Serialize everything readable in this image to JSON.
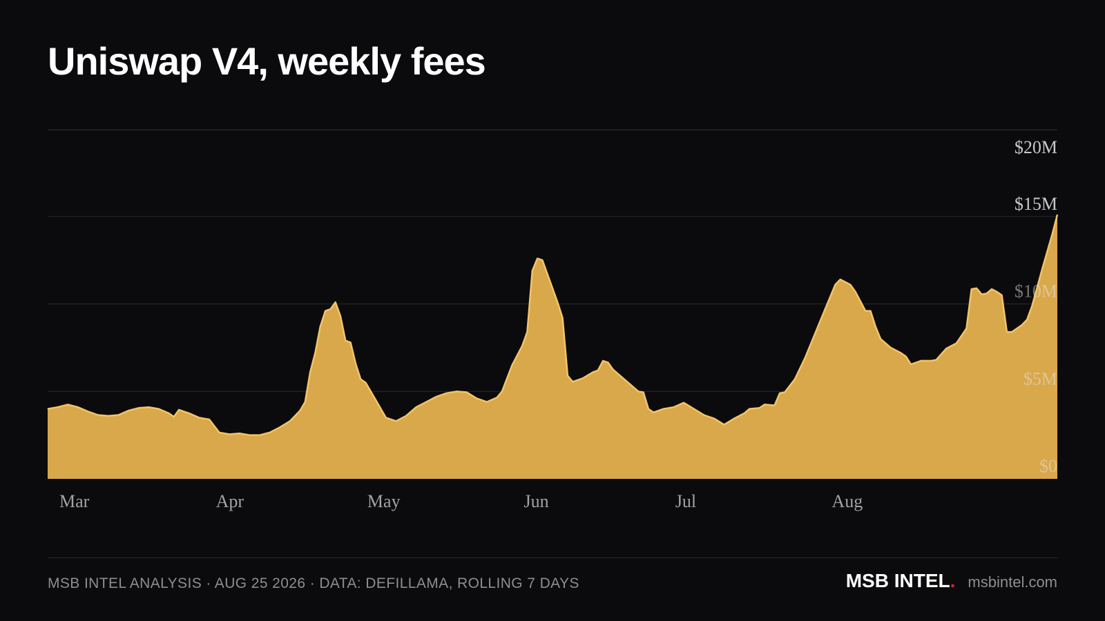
{
  "header": {
    "title": "Uniswap V4, weekly fees"
  },
  "footer": {
    "caption": "MSB INTEL ANALYSIS · AUG 25 2026 · DATA: DEFILLAMA, ROLLING 7 DAYS",
    "brand": "MSB INTEL",
    "brand_dot": ".",
    "site": "msbintel.com"
  },
  "colors": {
    "background": "#0b0b0d",
    "area_fill": "#d9a84a",
    "area_stroke": "#f2c46a",
    "gridline": "#2a2a2e",
    "brand_dot": "#d6263a"
  },
  "chart_data": {
    "type": "area",
    "title": "Uniswap V4, weekly fees",
    "xlabel": "",
    "ylabel": "",
    "x_unit": "day",
    "x_start": "2026-03-01",
    "x_end": "2026-08-25",
    "x_ticks": [
      {
        "label": "Mar",
        "date": "2026-03-01"
      },
      {
        "label": "Apr",
        "date": "2026-04-01"
      },
      {
        "label": "May",
        "date": "2026-05-01"
      },
      {
        "label": "Jun",
        "date": "2026-06-01"
      },
      {
        "label": "Jul",
        "date": "2026-07-01"
      },
      {
        "label": "Aug",
        "date": "2026-08-01"
      }
    ],
    "y_ticks": [
      {
        "label": "$0",
        "value": 0
      },
      {
        "label": "$5M",
        "value": 5
      },
      {
        "label": "$10M",
        "value": 10
      },
      {
        "label": "$15M",
        "value": 15
      },
      {
        "label": "$20M",
        "value": 20
      }
    ],
    "y_unit": "USD millions",
    "ylim": [
      0,
      20
    ],
    "grid": true,
    "legend": "none",
    "series": [
      {
        "points": [
          [
            "2026-03-01",
            4.0
          ],
          [
            "2026-03-03",
            4.1
          ],
          [
            "2026-03-05",
            4.25
          ],
          [
            "2026-03-07",
            4.1
          ],
          [
            "2026-03-09",
            3.85
          ],
          [
            "2026-03-11",
            3.65
          ],
          [
            "2026-03-13",
            3.6
          ],
          [
            "2026-03-15",
            3.65
          ],
          [
            "2026-03-17",
            3.9
          ],
          [
            "2026-03-19",
            4.05
          ],
          [
            "2026-03-21",
            4.1
          ],
          [
            "2026-03-23",
            4.0
          ],
          [
            "2026-03-25",
            3.75
          ],
          [
            "2026-03-26",
            3.55
          ],
          [
            "2026-03-27",
            3.95
          ],
          [
            "2026-03-29",
            3.75
          ],
          [
            "2026-03-31",
            3.5
          ],
          [
            "2026-04-02",
            3.4
          ],
          [
            "2026-04-04",
            2.65
          ],
          [
            "2026-04-06",
            2.55
          ],
          [
            "2026-04-08",
            2.6
          ],
          [
            "2026-04-10",
            2.5
          ],
          [
            "2026-04-12",
            2.5
          ],
          [
            "2026-04-14",
            2.65
          ],
          [
            "2026-04-16",
            2.95
          ],
          [
            "2026-04-18",
            3.3
          ],
          [
            "2026-04-20",
            3.9
          ],
          [
            "2026-04-21",
            4.4
          ],
          [
            "2026-04-22",
            6.1
          ],
          [
            "2026-04-23",
            7.2
          ],
          [
            "2026-04-24",
            8.7
          ],
          [
            "2026-04-25",
            9.6
          ],
          [
            "2026-04-26",
            9.7
          ],
          [
            "2026-04-27",
            10.1
          ],
          [
            "2026-04-28",
            9.3
          ],
          [
            "2026-04-29",
            7.9
          ],
          [
            "2026-04-30",
            7.8
          ],
          [
            "2026-05-01",
            6.6
          ],
          [
            "2026-05-02",
            5.7
          ],
          [
            "2026-05-03",
            5.5
          ],
          [
            "2026-05-05",
            4.5
          ],
          [
            "2026-05-07",
            3.5
          ],
          [
            "2026-05-09",
            3.3
          ],
          [
            "2026-05-11",
            3.6
          ],
          [
            "2026-05-13",
            4.1
          ],
          [
            "2026-05-15",
            4.4
          ],
          [
            "2026-05-17",
            4.7
          ],
          [
            "2026-05-19",
            4.9
          ],
          [
            "2026-05-21",
            5.0
          ],
          [
            "2026-05-23",
            4.95
          ],
          [
            "2026-05-25",
            4.6
          ],
          [
            "2026-05-27",
            4.4
          ],
          [
            "2026-05-29",
            4.65
          ],
          [
            "2026-05-30",
            5.0
          ],
          [
            "2026-06-01",
            6.5
          ],
          [
            "2026-06-03",
            7.6
          ],
          [
            "2026-06-04",
            8.4
          ],
          [
            "2026-06-05",
            11.9
          ],
          [
            "2026-06-06",
            12.6
          ],
          [
            "2026-06-07",
            12.5
          ],
          [
            "2026-06-08",
            11.7
          ],
          [
            "2026-06-09",
            10.9
          ],
          [
            "2026-06-10",
            10.1
          ],
          [
            "2026-06-11",
            9.2
          ],
          [
            "2026-06-12",
            5.9
          ],
          [
            "2026-06-13",
            5.55
          ],
          [
            "2026-06-15",
            5.75
          ],
          [
            "2026-06-17",
            6.1
          ],
          [
            "2026-06-18",
            6.2
          ],
          [
            "2026-06-19",
            6.75
          ],
          [
            "2026-06-20",
            6.65
          ],
          [
            "2026-06-21",
            6.25
          ],
          [
            "2026-06-22",
            6.0
          ],
          [
            "2026-06-24",
            5.5
          ],
          [
            "2026-06-26",
            5.0
          ],
          [
            "2026-06-27",
            4.95
          ],
          [
            "2026-06-28",
            4.0
          ],
          [
            "2026-06-29",
            3.8
          ],
          [
            "2026-07-01",
            4.0
          ],
          [
            "2026-07-03",
            4.1
          ],
          [
            "2026-07-05",
            4.35
          ],
          [
            "2026-07-07",
            4.0
          ],
          [
            "2026-07-09",
            3.65
          ],
          [
            "2026-07-11",
            3.45
          ],
          [
            "2026-07-13",
            3.1
          ],
          [
            "2026-07-15",
            3.45
          ],
          [
            "2026-07-17",
            3.75
          ],
          [
            "2026-07-18",
            4.0
          ],
          [
            "2026-07-20",
            4.05
          ],
          [
            "2026-07-21",
            4.25
          ],
          [
            "2026-07-23",
            4.2
          ],
          [
            "2026-07-24",
            4.9
          ],
          [
            "2026-07-25",
            4.95
          ],
          [
            "2026-07-27",
            5.7
          ],
          [
            "2026-07-29",
            6.9
          ],
          [
            "2026-07-31",
            8.3
          ],
          [
            "2026-08-02",
            9.7
          ],
          [
            "2026-08-04",
            11.1
          ],
          [
            "2026-08-05",
            11.4
          ],
          [
            "2026-08-07",
            11.1
          ],
          [
            "2026-08-08",
            10.7
          ],
          [
            "2026-08-10",
            9.6
          ],
          [
            "2026-08-11",
            9.6
          ],
          [
            "2026-08-12",
            8.7
          ],
          [
            "2026-08-13",
            8.0
          ],
          [
            "2026-08-15",
            7.5
          ],
          [
            "2026-08-17",
            7.2
          ],
          [
            "2026-08-18",
            7.0
          ],
          [
            "2026-08-19",
            6.55
          ],
          [
            "2026-08-21",
            6.75
          ],
          [
            "2026-08-23",
            6.75
          ],
          [
            "2026-08-24",
            6.8
          ],
          [
            "2026-08-26",
            7.45
          ],
          [
            "2026-08-28",
            7.75
          ],
          [
            "2026-08-30",
            8.6
          ],
          [
            "2026-08-31",
            10.85
          ],
          [
            "2026-09-01",
            10.9
          ],
          [
            "2026-09-02",
            10.55
          ],
          [
            "2026-09-03",
            10.6
          ],
          [
            "2026-09-04",
            10.85
          ],
          [
            "2026-09-05",
            10.7
          ],
          [
            "2026-09-06",
            10.5
          ],
          [
            "2026-09-07",
            8.4
          ],
          [
            "2026-09-08",
            8.4
          ],
          [
            "2026-09-10",
            8.8
          ],
          [
            "2026-09-11",
            9.1
          ],
          [
            "2026-09-12",
            9.9
          ],
          [
            "2026-09-14",
            12.0
          ],
          [
            "2026-09-16",
            14.0
          ],
          [
            "2026-09-17",
            15.1
          ]
        ]
      }
    ]
  }
}
